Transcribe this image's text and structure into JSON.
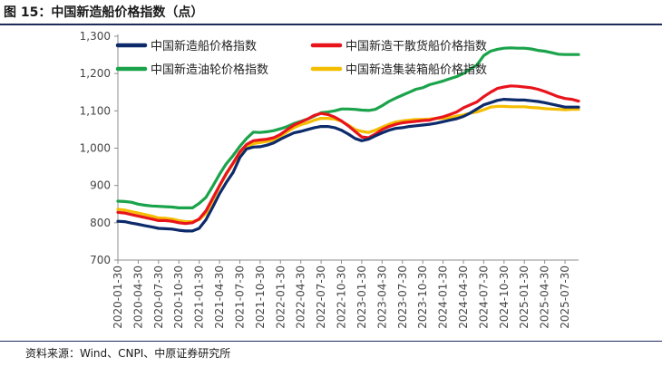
{
  "figure": {
    "title": "图 15：中国新造船价格指数（点）",
    "source": "资料来源：Wind、CNPI、中原证券研究所"
  },
  "chart_data": {
    "type": "line",
    "title": "中国新造船价格指数（点）",
    "xlabel": "",
    "ylabel": "",
    "ylim": [
      700,
      1300
    ],
    "yticks": [
      700,
      800,
      900,
      "1,000",
      "1,100",
      "1,200",
      "1,300"
    ],
    "grid": false,
    "legend_position": "top",
    "x_tick_labels": [
      "2020-01-30",
      "2020-04-30",
      "2020-07-30",
      "2020-10-30",
      "2021-01-30",
      "2021-04-30",
      "2021-07-30",
      "2021-10-30",
      "2022-01-30",
      "2022-04-30",
      "2022-07-30",
      "2022-10-30",
      "2023-01-30",
      "2023-04-30",
      "2023-07-30",
      "2023-10-30",
      "2024-01-30",
      "2024-04-30",
      "2024-07-30",
      "2024-10-30",
      "2025-01-30",
      "2025-04-30",
      "2025-07-30"
    ],
    "x": [
      "2020-01",
      "2020-02",
      "2020-03",
      "2020-04",
      "2020-05",
      "2020-06",
      "2020-07",
      "2020-08",
      "2020-09",
      "2020-10",
      "2020-11",
      "2020-12",
      "2021-01",
      "2021-02",
      "2021-03",
      "2021-04",
      "2021-05",
      "2021-06",
      "2021-07",
      "2021-08",
      "2021-09",
      "2021-10",
      "2021-11",
      "2021-12",
      "2022-01",
      "2022-02",
      "2022-03",
      "2022-04",
      "2022-05",
      "2022-06",
      "2022-07",
      "2022-08",
      "2022-09",
      "2022-10",
      "2022-11",
      "2022-12",
      "2023-01",
      "2023-02",
      "2023-03",
      "2023-04",
      "2023-05",
      "2023-06",
      "2023-07",
      "2023-08",
      "2023-09",
      "2023-10",
      "2023-11",
      "2023-12",
      "2024-01",
      "2024-02",
      "2024-03",
      "2024-04",
      "2024-05",
      "2024-06",
      "2024-07",
      "2024-08",
      "2024-09",
      "2024-10",
      "2024-11",
      "2024-12",
      "2025-01",
      "2025-02",
      "2025-03",
      "2025-04",
      "2025-05",
      "2025-06",
      "2025-07",
      "2025-08",
      "2025-09"
    ],
    "series": [
      {
        "name": "中国新造船价格指数",
        "color": "#0d2a6b",
        "values": [
          804,
          803,
          799,
          796,
          792,
          789,
          785,
          784,
          783,
          780,
          778,
          778,
          785,
          808,
          842,
          878,
          908,
          935,
          975,
          998,
          1003,
          1004,
          1008,
          1014,
          1024,
          1033,
          1041,
          1045,
          1050,
          1055,
          1058,
          1058,
          1055,
          1048,
          1038,
          1026,
          1020,
          1024,
          1033,
          1041,
          1048,
          1053,
          1055,
          1058,
          1060,
          1062,
          1064,
          1067,
          1071,
          1075,
          1079,
          1085,
          1094,
          1105,
          1116,
          1122,
          1128,
          1131,
          1130,
          1129,
          1129,
          1127,
          1125,
          1122,
          1118,
          1114,
          1110,
          1110,
          1110
        ]
      },
      {
        "name": "中国新造干散货船价格指数",
        "color": "#e8141c",
        "values": [
          828,
          826,
          822,
          818,
          814,
          810,
          806,
          806,
          804,
          800,
          798,
          800,
          810,
          832,
          866,
          900,
          932,
          960,
          990,
          1010,
          1020,
          1022,
          1024,
          1028,
          1037,
          1050,
          1062,
          1070,
          1078,
          1088,
          1093,
          1090,
          1083,
          1073,
          1060,
          1045,
          1030,
          1028,
          1038,
          1050,
          1058,
          1064,
          1068,
          1070,
          1072,
          1074,
          1075,
          1080,
          1084,
          1090,
          1097,
          1108,
          1116,
          1124,
          1138,
          1150,
          1160,
          1164,
          1167,
          1166,
          1164,
          1162,
          1158,
          1152,
          1145,
          1138,
          1133,
          1131,
          1126
        ]
      },
      {
        "name": "中国新造油轮价格指数",
        "color": "#1aa34a",
        "values": [
          858,
          857,
          855,
          850,
          847,
          845,
          844,
          843,
          842,
          840,
          840,
          840,
          852,
          868,
          898,
          930,
          958,
          980,
          1005,
          1026,
          1043,
          1042,
          1044,
          1047,
          1052,
          1058,
          1066,
          1072,
          1078,
          1086,
          1095,
          1097,
          1100,
          1105,
          1105,
          1104,
          1102,
          1101,
          1104,
          1114,
          1125,
          1134,
          1142,
          1150,
          1158,
          1162,
          1170,
          1175,
          1180,
          1186,
          1192,
          1200,
          1212,
          1223,
          1248,
          1260,
          1265,
          1268,
          1269,
          1268,
          1268,
          1266,
          1262,
          1260,
          1256,
          1252,
          1251,
          1251,
          1251
        ]
      },
      {
        "name": "中国新造集装箱船价格指数",
        "color": "#f5bd00",
        "values": [
          836,
          834,
          830,
          826,
          822,
          818,
          813,
          812,
          810,
          806,
          803,
          803,
          808,
          825,
          860,
          898,
          930,
          958,
          985,
          1004,
          1012,
          1015,
          1018,
          1022,
          1032,
          1044,
          1055,
          1063,
          1068,
          1075,
          1080,
          1080,
          1078,
          1072,
          1062,
          1050,
          1045,
          1042,
          1048,
          1056,
          1064,
          1070,
          1073,
          1075,
          1077,
          1077,
          1078,
          1080,
          1080,
          1082,
          1086,
          1089,
          1094,
          1097,
          1103,
          1110,
          1112,
          1112,
          1111,
          1111,
          1111,
          1109,
          1108,
          1106,
          1105,
          1104,
          1103,
          1104,
          1104
        ]
      }
    ]
  }
}
